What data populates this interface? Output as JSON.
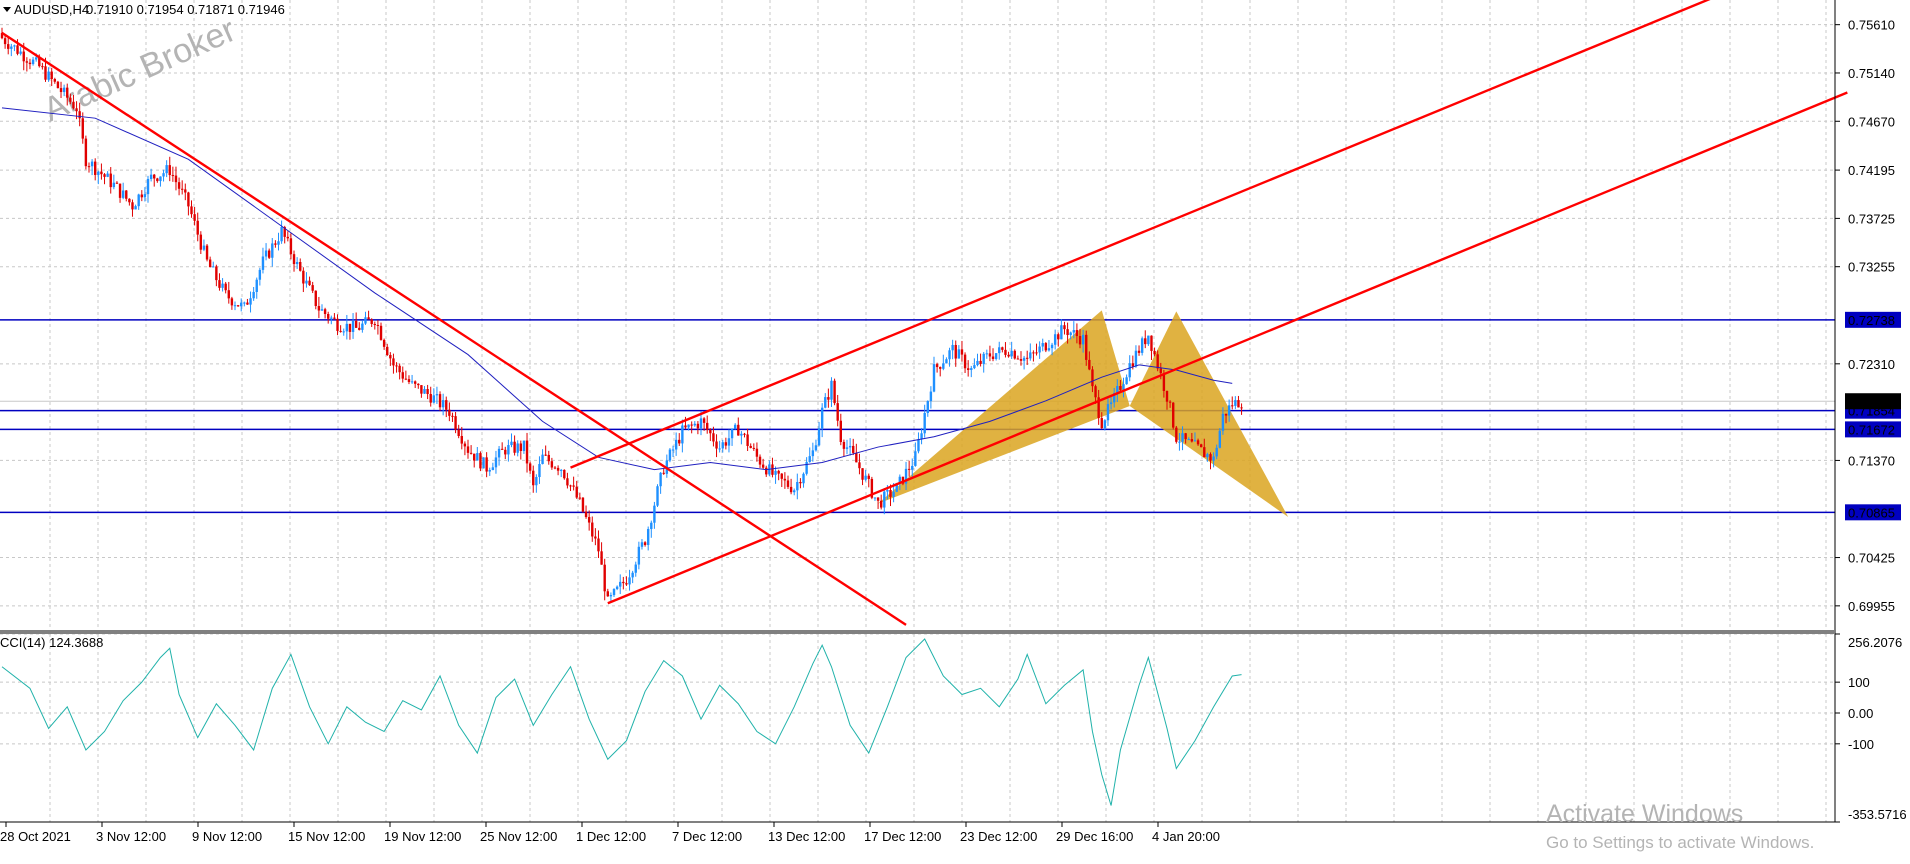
{
  "header": {
    "symbol": "AUDUSD,H4",
    "ohlc": "0.71910 0.71954 0.71871 0.71946",
    "watermark": "Arabic Broker"
  },
  "indicator": {
    "label": "CCI(14) 124.3688"
  },
  "activation": {
    "line1": "Activate Windows",
    "line2": "Go to Settings to activate Windows."
  },
  "colors": {
    "bull": "#1e90ff",
    "bear": "#e00000",
    "ma": "#2020c0",
    "trend": "#ff0000",
    "hline": "#0000c0",
    "pattern": "#daa520",
    "cci": "#20b2aa",
    "grid": "#c8c8c8"
  },
  "chart_data": [
    {
      "type": "candlestick",
      "symbol": "AUDUSD",
      "timeframe": "H4",
      "x_ticks": [
        "28 Oct 2021",
        "3 Nov 12:00",
        "9 Nov 12:00",
        "15 Nov 12:00",
        "19 Nov 12:00",
        "25 Nov 12:00",
        "1 Dec 12:00",
        "7 Dec 12:00",
        "13 Dec 12:00",
        "17 Dec 12:00",
        "23 Dec 12:00",
        "29 Dec 16:00",
        "4 Jan 20:00"
      ],
      "y_ticks": [
        "0.75610",
        "0.75140",
        "0.74670",
        "0.74195",
        "0.73725",
        "0.73255",
        "0.72310",
        "0.71370",
        "0.70425",
        "0.69955"
      ],
      "ylim": [
        0.6972,
        0.7585
      ],
      "horizontal_levels": [
        {
          "label": "0.72738",
          "value": 0.72738
        },
        {
          "label": "0.71854",
          "value": 0.71854
        },
        {
          "label": "0.71672",
          "value": 0.71672
        },
        {
          "label": "0.70865",
          "value": 0.70865
        }
      ],
      "current_price": {
        "label": "0.71946",
        "value": 0.71946
      },
      "close_path": [
        [
          0,
          0.7548
        ],
        [
          4,
          0.752
        ],
        [
          6,
          0.75
        ],
        [
          8,
          0.748
        ],
        [
          9,
          0.743
        ],
        [
          12,
          0.7405
        ],
        [
          14,
          0.7385
        ],
        [
          16,
          0.7412
        ],
        [
          18,
          0.742
        ],
        [
          20,
          0.7385
        ],
        [
          22,
          0.733
        ],
        [
          24,
          0.7298
        ],
        [
          26,
          0.7285
        ],
        [
          28,
          0.733
        ],
        [
          30,
          0.736
        ],
        [
          32,
          0.732
        ],
        [
          34,
          0.7285
        ],
        [
          36,
          0.727
        ],
        [
          38,
          0.7265
        ],
        [
          40,
          0.7275
        ],
        [
          42,
          0.723
        ],
        [
          44,
          0.721
        ],
        [
          46,
          0.72
        ],
        [
          48,
          0.7185
        ],
        [
          50,
          0.7148
        ],
        [
          52,
          0.713
        ],
        [
          54,
          0.7148
        ],
        [
          56,
          0.715
        ],
        [
          57,
          0.711
        ],
        [
          58,
          0.714
        ],
        [
          60,
          0.713
        ],
        [
          62,
          0.7095
        ],
        [
          64,
          0.705
        ],
        [
          65,
          0.6998
        ],
        [
          67,
          0.7022
        ],
        [
          69,
          0.706
        ],
        [
          71,
          0.713
        ],
        [
          73,
          0.7165
        ],
        [
          75,
          0.7175
        ],
        [
          77,
          0.715
        ],
        [
          79,
          0.7168
        ],
        [
          81,
          0.714
        ],
        [
          83,
          0.712
        ],
        [
          85,
          0.711
        ],
        [
          87,
          0.7145
        ],
        [
          88,
          0.7185
        ],
        [
          89,
          0.721
        ],
        [
          90,
          0.716
        ],
        [
          92,
          0.713
        ],
        [
          94,
          0.7095
        ],
        [
          96,
          0.711
        ],
        [
          98,
          0.714
        ],
        [
          100,
          0.7225
        ],
        [
          102,
          0.7245
        ],
        [
          104,
          0.7225
        ],
        [
          106,
          0.724
        ],
        [
          108,
          0.7245
        ],
        [
          110,
          0.7235
        ],
        [
          112,
          0.725
        ],
        [
          114,
          0.7265
        ],
        [
          116,
          0.7255
        ],
        [
          117,
          0.7205
        ],
        [
          118,
          0.7175
        ],
        [
          119,
          0.719
        ],
        [
          121,
          0.723
        ],
        [
          123,
          0.726
        ],
        [
          125,
          0.72
        ],
        [
          126,
          0.716
        ],
        [
          128,
          0.715
        ],
        [
          130,
          0.7138
        ],
        [
          131,
          0.718
        ],
        [
          132,
          0.7192
        ],
        [
          133,
          0.7195
        ]
      ],
      "moving_average_path": [
        [
          0,
          0.748
        ],
        [
          10,
          0.747
        ],
        [
          20,
          0.743
        ],
        [
          30,
          0.7365
        ],
        [
          40,
          0.73
        ],
        [
          50,
          0.724
        ],
        [
          58,
          0.7175
        ],
        [
          64,
          0.714
        ],
        [
          70,
          0.7128
        ],
        [
          76,
          0.7135
        ],
        [
          82,
          0.7128
        ],
        [
          88,
          0.7135
        ],
        [
          94,
          0.715
        ],
        [
          100,
          0.716
        ],
        [
          106,
          0.7175
        ],
        [
          112,
          0.7195
        ],
        [
          118,
          0.7218
        ],
        [
          122,
          0.723
        ],
        [
          126,
          0.7225
        ],
        [
          130,
          0.7215
        ],
        [
          132,
          0.7212
        ]
      ],
      "trendlines": [
        {
          "from": [
            0,
            0.7553
          ],
          "to": [
            97,
            0.6977
          ]
        },
        {
          "from": [
            65,
            0.6998
          ],
          "to": [
            198,
            0.7495
          ]
        },
        {
          "from": [
            61,
            0.713
          ],
          "to": [
            187,
            0.76
          ]
        }
      ],
      "harmonic_pattern": {
        "X": [
          94,
          0.7095
        ],
        "A": [
          118,
          0.7283
        ],
        "B": [
          121,
          0.719
        ],
        "C": [
          126,
          0.7282
        ],
        "D": [
          138,
          0.7082
        ]
      }
    },
    {
      "type": "line",
      "name": "CCI(14)",
      "y_ticks": [
        "256.2076",
        "100",
        "0.00",
        "-100",
        "-353.5716"
      ],
      "ylim": [
        -353.5716,
        256.2076
      ],
      "values": [
        [
          0,
          150
        ],
        [
          3,
          80
        ],
        [
          5,
          -50
        ],
        [
          7,
          20
        ],
        [
          9,
          -120
        ],
        [
          11,
          -60
        ],
        [
          13,
          40
        ],
        [
          15,
          100
        ],
        [
          17,
          180
        ],
        [
          18,
          210
        ],
        [
          19,
          60
        ],
        [
          21,
          -80
        ],
        [
          23,
          30
        ],
        [
          25,
          -40
        ],
        [
          27,
          -120
        ],
        [
          29,
          80
        ],
        [
          31,
          190
        ],
        [
          33,
          20
        ],
        [
          35,
          -100
        ],
        [
          37,
          20
        ],
        [
          39,
          -30
        ],
        [
          41,
          -60
        ],
        [
          43,
          40
        ],
        [
          45,
          10
        ],
        [
          47,
          120
        ],
        [
          49,
          -40
        ],
        [
          51,
          -130
        ],
        [
          53,
          50
        ],
        [
          55,
          110
        ],
        [
          57,
          -40
        ],
        [
          59,
          60
        ],
        [
          61,
          150
        ],
        [
          63,
          -20
        ],
        [
          65,
          -150
        ],
        [
          67,
          -90
        ],
        [
          69,
          70
        ],
        [
          71,
          170
        ],
        [
          73,
          120
        ],
        [
          75,
          -20
        ],
        [
          77,
          90
        ],
        [
          79,
          30
        ],
        [
          81,
          -60
        ],
        [
          83,
          -100
        ],
        [
          85,
          20
        ],
        [
          87,
          160
        ],
        [
          88,
          220
        ],
        [
          89,
          150
        ],
        [
          91,
          -40
        ],
        [
          93,
          -130
        ],
        [
          95,
          20
        ],
        [
          97,
          180
        ],
        [
          99,
          240
        ],
        [
          101,
          120
        ],
        [
          103,
          60
        ],
        [
          105,
          80
        ],
        [
          107,
          20
        ],
        [
          109,
          110
        ],
        [
          110,
          190
        ],
        [
          112,
          30
        ],
        [
          114,
          90
        ],
        [
          116,
          140
        ],
        [
          117,
          -60
        ],
        [
          118,
          -200
        ],
        [
          119,
          -300
        ],
        [
          120,
          -120
        ],
        [
          122,
          90
        ],
        [
          123,
          180
        ],
        [
          125,
          -50
        ],
        [
          126,
          -180
        ],
        [
          128,
          -90
        ],
        [
          130,
          20
        ],
        [
          132,
          120
        ],
        [
          133,
          124.3688
        ]
      ]
    }
  ]
}
